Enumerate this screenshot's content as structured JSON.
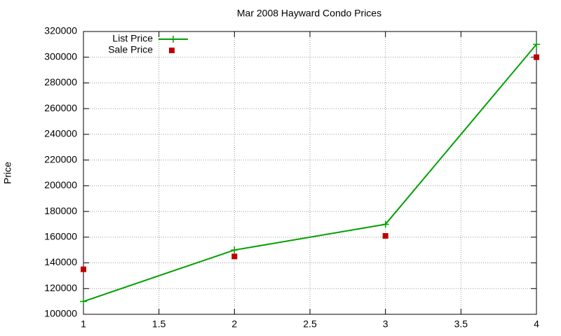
{
  "chart_data": {
    "type": "line",
    "title": "Mar 2008 Hayward Condo Prices",
    "y_label": "Price",
    "x": [
      1,
      2,
      3,
      4
    ],
    "series": [
      {
        "name": "List Price",
        "color": "#00a000",
        "style": "linespoints",
        "values": [
          110000,
          150000,
          170000,
          310000
        ]
      },
      {
        "name": "Sale Price",
        "color": "#c00000",
        "style": "points",
        "values": [
          135000,
          145000,
          161000,
          300000
        ]
      }
    ],
    "xlim": [
      1,
      4
    ],
    "xticks": [
      1,
      1.5,
      2,
      2.5,
      3,
      3.5,
      4
    ],
    "ylim": [
      100000,
      320000
    ],
    "yticks": [
      100000,
      120000,
      140000,
      160000,
      180000,
      200000,
      220000,
      240000,
      260000,
      280000,
      300000,
      320000
    ],
    "grid": true,
    "legend": "top-left"
  }
}
